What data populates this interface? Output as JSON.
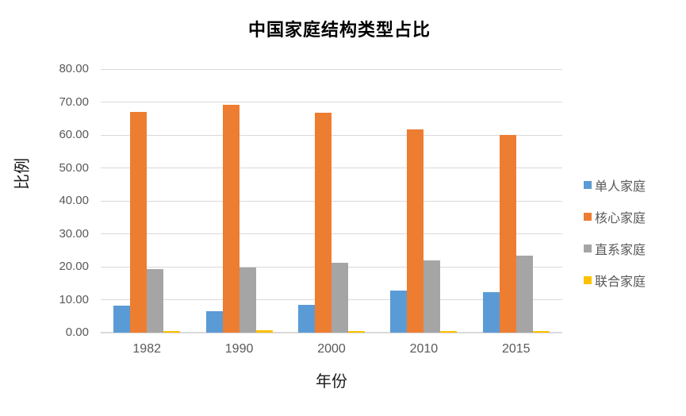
{
  "chart_data": {
    "type": "bar",
    "title": "中国家庭结构类型占比",
    "xlabel": "年份",
    "ylabel": "比例",
    "categories": [
      "1982",
      "1990",
      "2000",
      "2010",
      "2015"
    ],
    "series": [
      {
        "name": "单人家庭",
        "color": "#5B9BD5",
        "values": [
          8.1,
          6.4,
          8.5,
          12.7,
          12.4
        ]
      },
      {
        "name": "核心家庭",
        "color": "#ED7D31",
        "values": [
          66.9,
          69.1,
          66.8,
          61.6,
          60.1
        ]
      },
      {
        "name": "直系家庭",
        "color": "#A5A5A5",
        "values": [
          19.3,
          19.8,
          21.1,
          21.9,
          23.4
        ]
      },
      {
        "name": "联合家庭",
        "color": "#FFC000",
        "values": [
          0.4,
          0.7,
          0.4,
          0.5,
          0.4
        ]
      }
    ],
    "ylim": [
      0,
      80
    ],
    "ytick_step": 10,
    "ytick_labels": [
      "0.00",
      "10.00",
      "20.00",
      "30.00",
      "40.00",
      "50.00",
      "60.00",
      "70.00",
      "80.00"
    ],
    "grid": true,
    "legend_position": "right",
    "colors": {
      "gridline": "#D9D9D9",
      "axis_text": "#595959",
      "title_text": "#000000"
    }
  }
}
